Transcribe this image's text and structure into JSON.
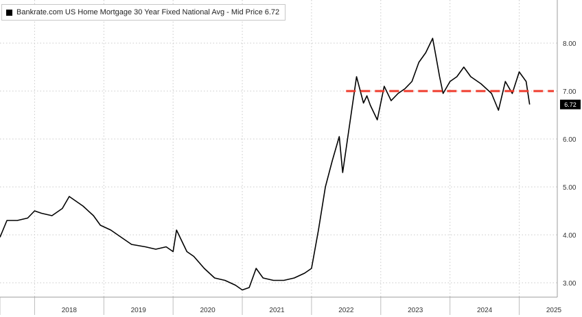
{
  "chart_data": {
    "type": "line",
    "legend": "Bankrate.com US Home Mortgage 30 Year Fixed National Avg - Mid Price 6.72",
    "series": [
      {
        "name": "Bankrate.com US Home Mortgage 30 Year Fixed National Avg",
        "color": "#000000",
        "x": [
          2017.5,
          2017.6,
          2017.75,
          2017.9,
          2018.0,
          2018.1,
          2018.25,
          2018.4,
          2018.5,
          2018.7,
          2018.85,
          2018.95,
          2019.1,
          2019.25,
          2019.4,
          2019.6,
          2019.75,
          2019.9,
          2020.0,
          2020.05,
          2020.2,
          2020.3,
          2020.45,
          2020.6,
          2020.75,
          2020.9,
          2021.0,
          2021.1,
          2021.2,
          2021.3,
          2021.45,
          2021.6,
          2021.75,
          2021.9,
          2022.0,
          2022.1,
          2022.2,
          2022.3,
          2022.4,
          2022.45,
          2022.55,
          2022.65,
          2022.75,
          2022.8,
          2022.85,
          2022.95,
          2023.05,
          2023.15,
          2023.25,
          2023.35,
          2023.45,
          2023.55,
          2023.65,
          2023.75,
          2023.8,
          2023.85,
          2023.9,
          2024.0,
          2024.1,
          2024.2,
          2024.3,
          2024.45,
          2024.6,
          2024.7,
          2024.8,
          2024.9,
          2025.0,
          2025.1,
          2025.15
        ],
        "values": [
          3.95,
          4.3,
          4.3,
          4.35,
          4.5,
          4.45,
          4.4,
          4.55,
          4.8,
          4.6,
          4.4,
          4.2,
          4.1,
          3.95,
          3.8,
          3.75,
          3.7,
          3.75,
          3.65,
          4.1,
          3.65,
          3.55,
          3.3,
          3.1,
          3.05,
          2.95,
          2.85,
          2.9,
          3.3,
          3.1,
          3.05,
          3.05,
          3.1,
          3.2,
          3.3,
          4.1,
          5.0,
          5.55,
          6.05,
          5.3,
          6.3,
          7.3,
          6.75,
          6.9,
          6.7,
          6.4,
          7.1,
          6.8,
          6.95,
          7.05,
          7.2,
          7.6,
          7.8,
          8.1,
          7.7,
          7.3,
          6.95,
          7.2,
          7.3,
          7.5,
          7.3,
          7.15,
          6.95,
          6.6,
          7.2,
          6.95,
          7.4,
          7.2,
          6.72
        ]
      },
      {
        "name": "",
        "style": "dashed",
        "color": "#ef3b2c",
        "x": [
          2022.5,
          2025.5
        ],
        "values": [
          7.0,
          7.0
        ]
      }
    ],
    "xticks": [
      "2018",
      "2019",
      "2020",
      "2021",
      "2022",
      "2023",
      "2024",
      "2025"
    ],
    "yticks": [
      "3.00",
      "4.00",
      "5.00",
      "6.00",
      "7.00",
      "8.00"
    ],
    "last_value": "6.72",
    "ylim": [
      2.7,
      8.9
    ],
    "xlim": [
      2017.5,
      2025.55
    ],
    "grid": true,
    "legend_position": "top-left"
  }
}
